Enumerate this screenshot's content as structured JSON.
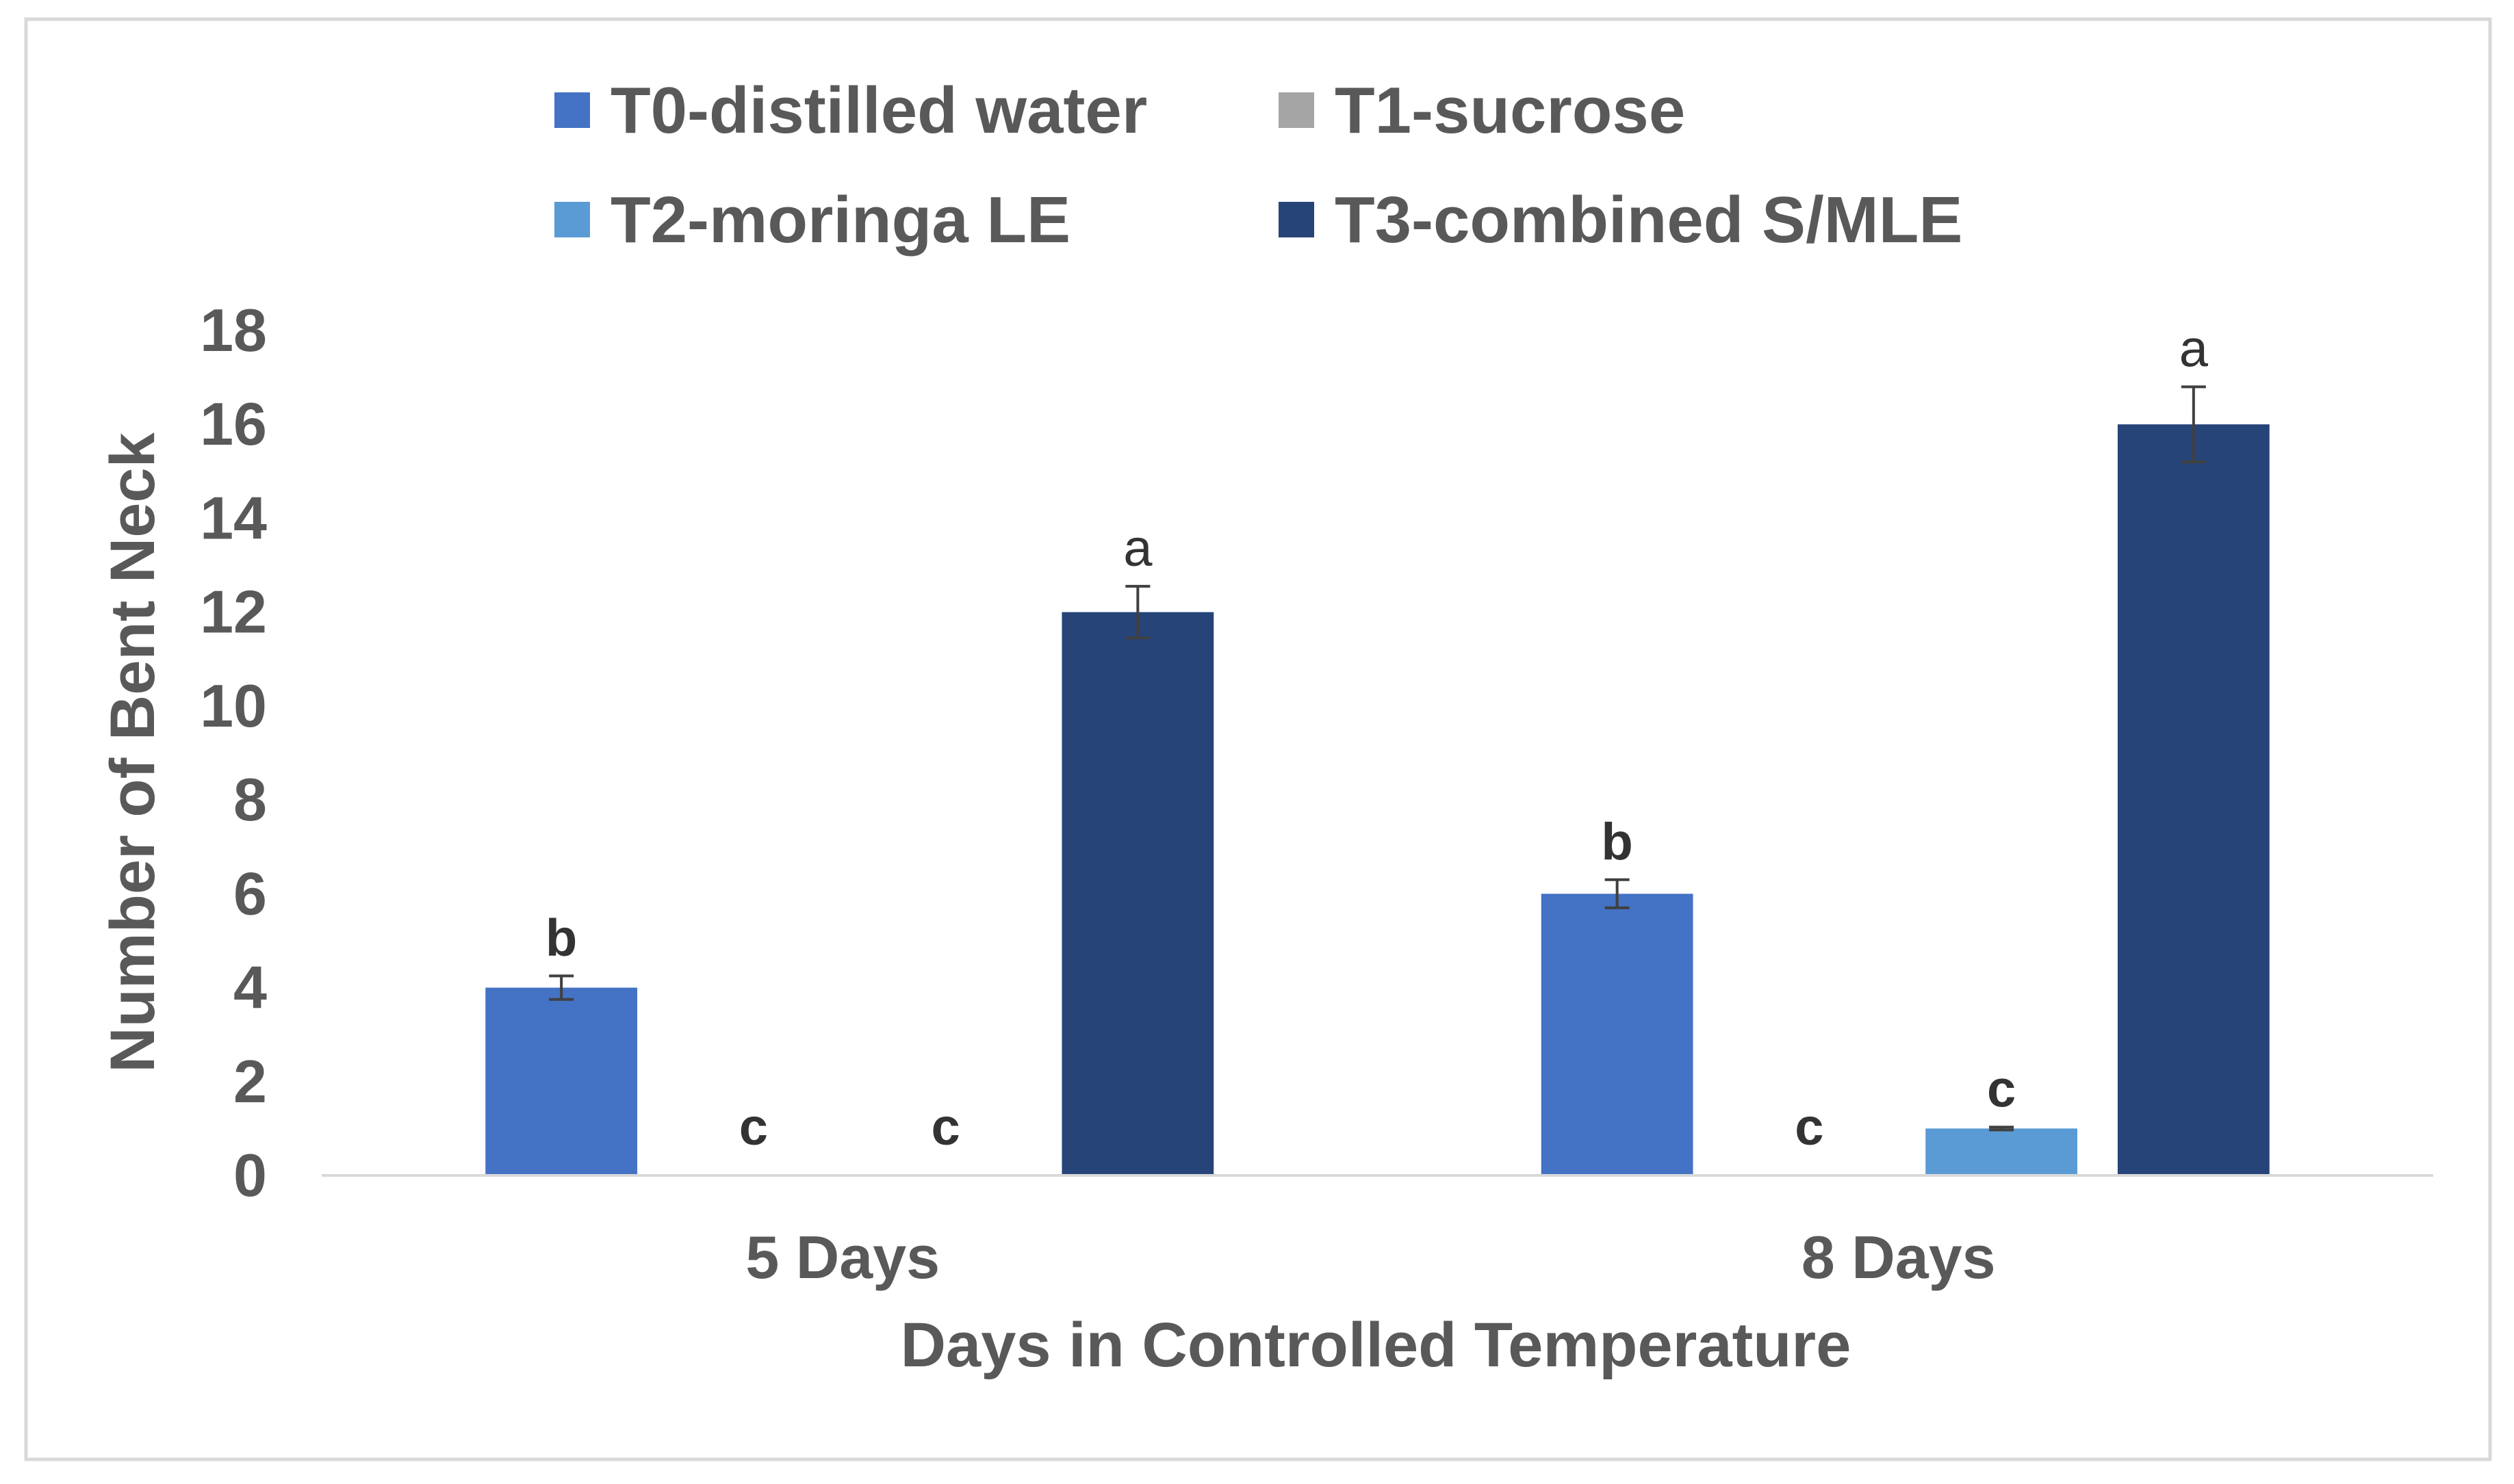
{
  "chart_data": {
    "type": "bar",
    "title": "",
    "xlabel": "Days in Controlled Temperature",
    "ylabel": "Number of Bent Neck",
    "ylim": [
      0,
      18
    ],
    "yticks": [
      0,
      2,
      4,
      6,
      8,
      10,
      12,
      14,
      16,
      18
    ],
    "grid": false,
    "legend_position": "top",
    "categories": [
      "5 Days",
      "8 Days"
    ],
    "series": [
      {
        "name": "T0-distilled water",
        "color": "#4472C4",
        "values": [
          4,
          6
        ],
        "errors": [
          0.25,
          0.3
        ],
        "labels": [
          "b",
          "b"
        ]
      },
      {
        "name": "T1-sucrose",
        "color": "#A5A5A5",
        "values": [
          0,
          0
        ],
        "errors": [
          0,
          0
        ],
        "labels": [
          "c",
          "c"
        ]
      },
      {
        "name": "T2-moringa LE",
        "color": "#5B9BD5",
        "values": [
          0,
          1
        ],
        "errors": [
          0,
          0.03
        ],
        "labels": [
          "c",
          "c"
        ]
      },
      {
        "name": "T3-combined S/MLE",
        "color": "#264478",
        "values": [
          12,
          16
        ],
        "errors": [
          0.55,
          0.8
        ],
        "labels": [
          "a",
          "a"
        ]
      }
    ]
  }
}
